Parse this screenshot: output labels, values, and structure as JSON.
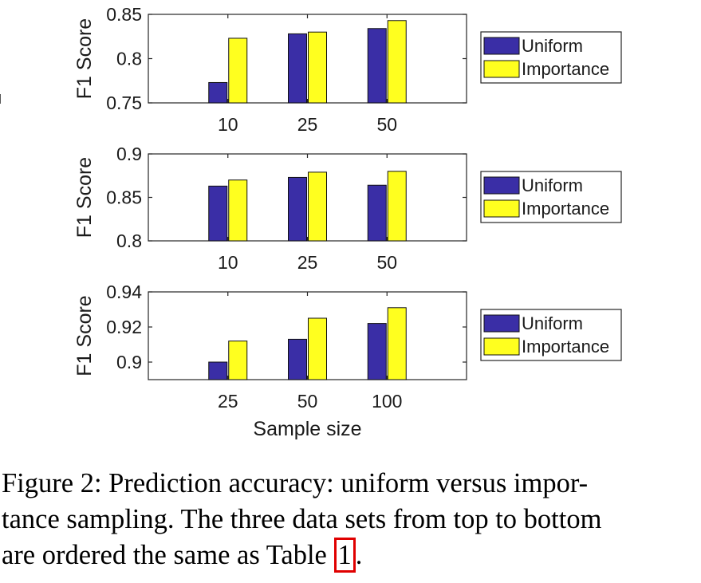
{
  "chart_data": [
    {
      "type": "bar",
      "categories": [
        "10",
        "25",
        "50"
      ],
      "series": [
        {
          "name": "Uniform",
          "values": [
            0.773,
            0.828,
            0.834
          ]
        },
        {
          "name": "Importance",
          "values": [
            0.823,
            0.83,
            0.843
          ]
        }
      ],
      "ylabel": "F1 Score",
      "ylim": [
        0.75,
        0.85
      ],
      "yticks": [
        "0.75",
        "0.8",
        "0.85"
      ],
      "legend": "right",
      "grid": false
    },
    {
      "type": "bar",
      "categories": [
        "10",
        "25",
        "50"
      ],
      "series": [
        {
          "name": "Uniform",
          "values": [
            0.863,
            0.873,
            0.864
          ]
        },
        {
          "name": "Importance",
          "values": [
            0.87,
            0.879,
            0.88
          ]
        }
      ],
      "ylabel": "F1 Score",
      "ylim": [
        0.8,
        0.9
      ],
      "yticks": [
        "0.8",
        "0.85",
        "0.9"
      ],
      "legend": "right",
      "grid": false
    },
    {
      "type": "bar",
      "categories": [
        "25",
        "50",
        "100"
      ],
      "series": [
        {
          "name": "Uniform",
          "values": [
            0.9,
            0.913,
            0.922
          ]
        },
        {
          "name": "Importance",
          "values": [
            0.912,
            0.925,
            0.931
          ]
        }
      ],
      "ylabel": "F1 Score",
      "xlabel": "Sample size",
      "ylim": [
        0.89,
        0.94
      ],
      "yticks": [
        "0.9",
        "0.92",
        "0.94"
      ],
      "legend": "right",
      "grid": false
    }
  ],
  "colors": {
    "uniform": "#3a2ea6",
    "importance": "#ffff1f",
    "axis": "#262626"
  },
  "caption": {
    "line1": "Figure 2: Prediction accuracy: uniform versus impor-",
    "line2": "tance sampling. The three data sets from top to bottom",
    "line3_pre": "are ordered the same as Table ",
    "table_ref": "1",
    "line3_post": "."
  }
}
